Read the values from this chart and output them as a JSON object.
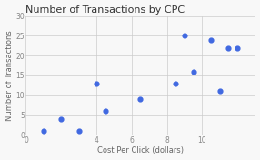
{
  "title": "Number of Transactions by CPC",
  "xlabel": "Cost Per Click (dollars)",
  "ylabel": "Number of Transactions",
  "x": [
    1.0,
    2.0,
    3.0,
    4.0,
    4.5,
    6.5,
    8.5,
    9.0,
    9.5,
    10.5,
    11.0,
    11.5,
    12.0
  ],
  "y": [
    1,
    4,
    1,
    13,
    6,
    9,
    13,
    25,
    16,
    24,
    11,
    22,
    22
  ],
  "xlim": [
    0,
    13
  ],
  "ylim": [
    0,
    30
  ],
  "xticks": [
    0,
    4,
    6,
    8,
    10
  ],
  "yticks": [
    0,
    5,
    10,
    15,
    20,
    25,
    30
  ],
  "dot_color": "#4169E1",
  "dot_size": 12,
  "background_color": "#f8f8f8",
  "grid_color": "#cccccc",
  "title_fontsize": 8,
  "label_fontsize": 6
}
